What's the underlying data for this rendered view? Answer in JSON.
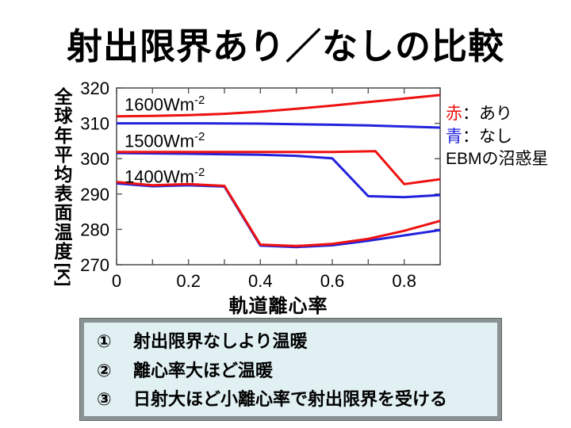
{
  "title": "射出限界あり／なしの比較",
  "colors": {
    "red": "#ee1111",
    "blue": "#2222dd",
    "box_bg": "#e1f0f2",
    "box_border": "#8a9294",
    "axis": "#555555"
  },
  "chart_data": {
    "type": "line",
    "title": "",
    "xlabel": "軌道離心率",
    "ylabel": "全球年平均表面温度[K]",
    "xlim": [
      0,
      0.9
    ],
    "ylim": [
      270,
      320
    ],
    "x_major_ticks": [
      0,
      0.2,
      0.4,
      0.6,
      0.8
    ],
    "x_tick_labels": [
      "0",
      "0.2",
      "0.4",
      "0.6",
      "0.8"
    ],
    "x_minor_ticks": [
      0.1,
      0.3,
      0.5,
      0.7,
      0.9
    ],
    "y_major_ticks": [
      270,
      280,
      290,
      300,
      310,
      320
    ],
    "grid": false,
    "legend_position": "right-outside",
    "series": [
      {
        "name": "1400Wm-2 射出限界なし(青)",
        "color": "#2222dd",
        "points": [
          [
            0,
            293.0
          ],
          [
            0.1,
            292.2
          ],
          [
            0.2,
            292.5
          ],
          [
            0.3,
            292.1
          ],
          [
            0.4,
            275.4
          ],
          [
            0.5,
            275.0
          ],
          [
            0.6,
            275.5
          ],
          [
            0.7,
            276.8
          ],
          [
            0.8,
            278.3
          ],
          [
            0.9,
            279.8
          ]
        ]
      },
      {
        "name": "1400Wm-2 射出限界あり(赤)",
        "color": "#ee1111",
        "points": [
          [
            0,
            293.4
          ],
          [
            0.1,
            292.5
          ],
          [
            0.2,
            292.8
          ],
          [
            0.3,
            292.3
          ],
          [
            0.4,
            275.7
          ],
          [
            0.5,
            275.3
          ],
          [
            0.6,
            275.9
          ],
          [
            0.7,
            277.3
          ],
          [
            0.8,
            279.6
          ],
          [
            0.9,
            282.4
          ]
        ]
      },
      {
        "name": "1500Wm-2 射出限界なし(青)",
        "color": "#2222dd",
        "points": [
          [
            0,
            301.6
          ],
          [
            0.2,
            301.4
          ],
          [
            0.4,
            301.1
          ],
          [
            0.5,
            300.8
          ],
          [
            0.6,
            300.1
          ],
          [
            0.7,
            289.4
          ],
          [
            0.8,
            289.1
          ],
          [
            0.9,
            289.7
          ]
        ]
      },
      {
        "name": "1500Wm-2 射出限界あり(赤)",
        "color": "#ee1111",
        "points": [
          [
            0,
            301.9
          ],
          [
            0.2,
            301.9
          ],
          [
            0.4,
            301.9
          ],
          [
            0.6,
            301.9
          ],
          [
            0.72,
            302.1
          ],
          [
            0.8,
            292.8
          ],
          [
            0.9,
            294.2
          ]
        ]
      },
      {
        "name": "1600Wm-2 射出限界なし(青)",
        "color": "#2222dd",
        "points": [
          [
            0,
            310.0
          ],
          [
            0.2,
            310.0
          ],
          [
            0.4,
            309.9
          ],
          [
            0.6,
            309.6
          ],
          [
            0.7,
            309.4
          ],
          [
            0.8,
            309.1
          ],
          [
            0.9,
            308.8
          ]
        ]
      },
      {
        "name": "1600Wm-2 射出限界あり(赤)",
        "color": "#ee1111",
        "points": [
          [
            0,
            312.0
          ],
          [
            0.1,
            312.1
          ],
          [
            0.2,
            312.3
          ],
          [
            0.3,
            312.7
          ],
          [
            0.4,
            313.3
          ],
          [
            0.5,
            314.1
          ],
          [
            0.6,
            315.0
          ],
          [
            0.7,
            316.0
          ],
          [
            0.8,
            317.0
          ],
          [
            0.9,
            318.0
          ]
        ]
      }
    ],
    "curve_labels": [
      {
        "text": "1600Wm",
        "sup": "-2"
      },
      {
        "text": "1500Wm",
        "sup": "-2"
      },
      {
        "text": "1400Wm",
        "sup": "-2"
      }
    ]
  },
  "legend": {
    "items": [
      {
        "key": "赤",
        "sep": "：",
        "label": "あり"
      },
      {
        "key": "青",
        "sep": "：",
        "label": "なし"
      },
      {
        "key": "",
        "sep": "",
        "label": "EBMの沼惑星"
      }
    ]
  },
  "notes": {
    "items": [
      {
        "num": "①",
        "text": "射出限界なしより温暖"
      },
      {
        "num": "②",
        "text": "離心率大ほど温暖"
      },
      {
        "num": "③",
        "text": "日射大ほど小離心率で射出限界を受ける"
      }
    ]
  }
}
